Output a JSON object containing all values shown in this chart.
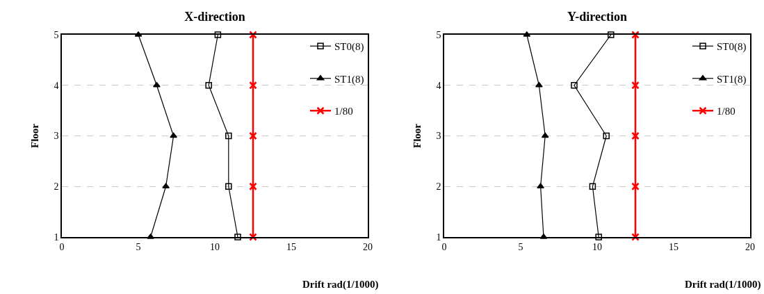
{
  "chart_data": [
    {
      "type": "line",
      "title": "X-direction",
      "xlabel": "Drift rad(1/1000)",
      "ylabel": "Floor",
      "xlim": [
        0,
        20
      ],
      "xticks": [
        0,
        5,
        10,
        15,
        20
      ],
      "ylim": [
        1,
        5
      ],
      "yticks": [
        1,
        2,
        3,
        4,
        5
      ],
      "grid": "y",
      "legend": "top right",
      "line_style": "solid",
      "series": [
        {
          "name": "ST0(8)",
          "color": "#000000",
          "marker": "square",
          "x": [
            11.5,
            10.9,
            10.9,
            9.6,
            10.2
          ],
          "values": [
            1,
            2,
            3,
            4,
            5
          ]
        },
        {
          "name": "ST1(8)",
          "color": "#000000",
          "marker": "triangle",
          "x": [
            5.8,
            6.8,
            7.3,
            6.2,
            5.0
          ],
          "values": [
            1,
            2,
            3,
            4,
            5
          ]
        },
        {
          "name": "1/80",
          "color": "#ff0000",
          "marker": "cross",
          "x": [
            12.5,
            12.5,
            12.5,
            12.5,
            12.5
          ],
          "values": [
            1,
            2,
            3,
            4,
            5
          ]
        }
      ]
    },
    {
      "type": "line",
      "title": "Y-direction",
      "xlabel": "Drift rad(1/1000)",
      "ylabel": "Floor",
      "xlim": [
        0,
        20
      ],
      "xticks": [
        0,
        5,
        10,
        15,
        20
      ],
      "ylim": [
        1,
        5
      ],
      "yticks": [
        1,
        2,
        3,
        4,
        5
      ],
      "grid": "y",
      "legend": "top right",
      "line_style": "solid",
      "series": [
        {
          "name": "ST0(8)",
          "color": "#000000",
          "marker": "square",
          "x": [
            10.1,
            9.7,
            10.6,
            8.5,
            10.9
          ],
          "values": [
            1,
            2,
            3,
            4,
            5
          ]
        },
        {
          "name": "ST1(8)",
          "color": "#000000",
          "marker": "triangle",
          "x": [
            6.5,
            6.3,
            6.6,
            6.2,
            5.4
          ],
          "values": [
            1,
            2,
            3,
            4,
            5
          ]
        },
        {
          "name": "1/80",
          "color": "#ff0000",
          "marker": "cross",
          "x": [
            12.5,
            12.5,
            12.5,
            12.5,
            12.5
          ],
          "values": [
            1,
            2,
            3,
            4,
            5
          ]
        }
      ]
    }
  ]
}
